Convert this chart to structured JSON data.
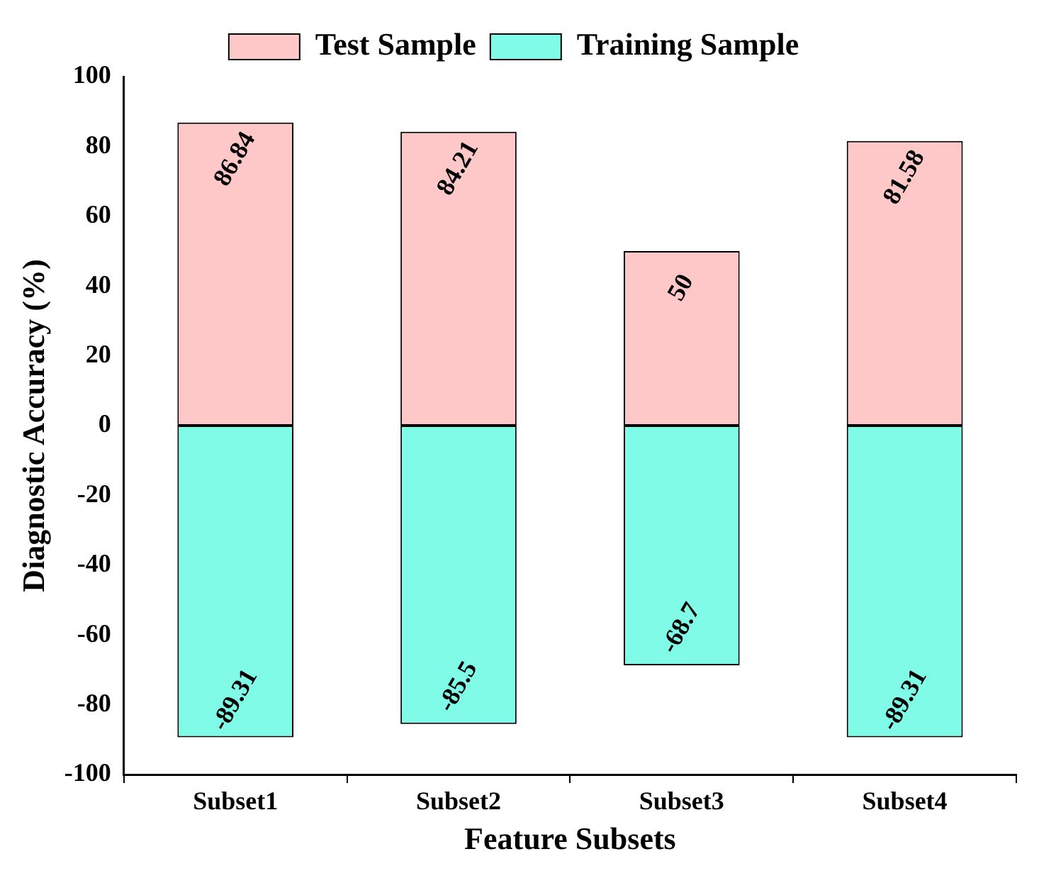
{
  "chart_data": {
    "type": "bar",
    "stacked": true,
    "xlabel": "Feature Subsets",
    "ylabel": "Diagnostic Accuracy (%)",
    "categories": [
      "Subset1",
      "Subset2",
      "Subset3",
      "Subset4"
    ],
    "series": [
      {
        "name": "Test Sample",
        "color": "#ffc8c8",
        "values": [
          86.84,
          84.21,
          50,
          81.58
        ]
      },
      {
        "name": "Training Sample",
        "color": "#7ffbe8",
        "values": [
          -89.31,
          -85.5,
          -68.7,
          -89.31
        ]
      }
    ],
    "ylim": [
      -100,
      100
    ],
    "yticks": [
      -100,
      -80,
      -60,
      -40,
      -20,
      0,
      20,
      40,
      60,
      80,
      100
    ],
    "grid": false,
    "legend": "top",
    "data_labels": true
  }
}
